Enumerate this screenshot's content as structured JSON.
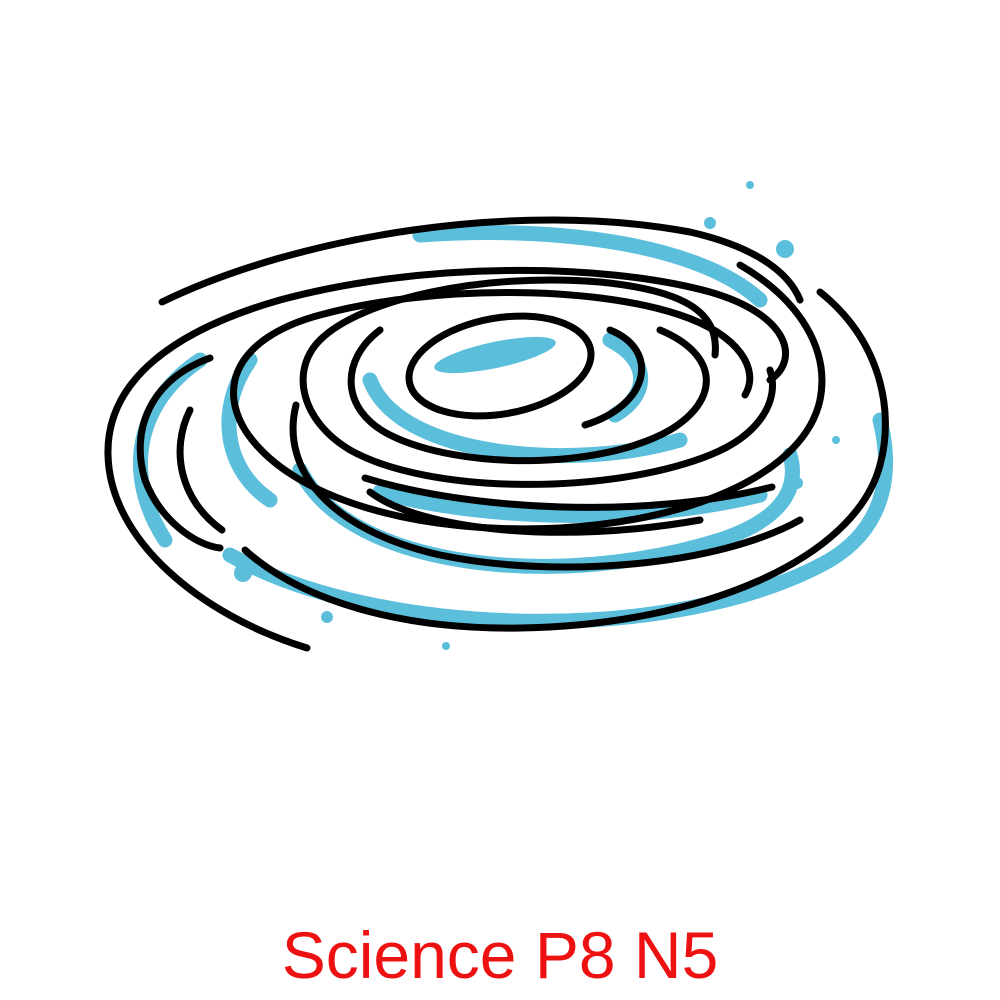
{
  "illustration": {
    "icon": "spiral-galaxy-icon",
    "colors": {
      "outline": "#000000",
      "accent": "#5bbfdc",
      "background": "#ffffff"
    }
  },
  "caption": {
    "text": "Science P8 N5",
    "color": "#ee1111"
  }
}
